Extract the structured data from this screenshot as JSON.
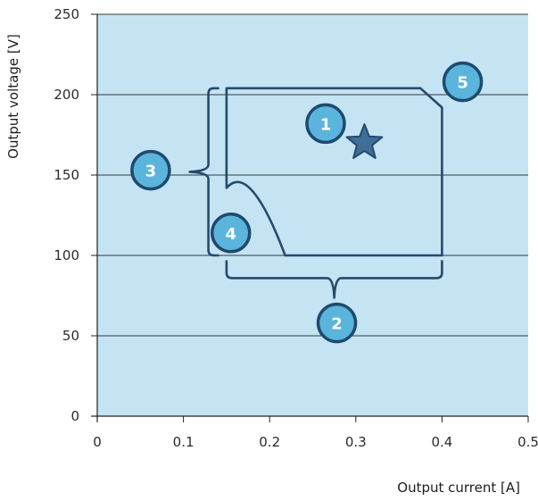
{
  "chart_data": {
    "type": "area",
    "title": "",
    "xlabel": "Output current [A]",
    "ylabel": "Output voltage [V]",
    "xlim": [
      0,
      0.5
    ],
    "ylim": [
      0,
      250
    ],
    "x_ticks": [
      0,
      0.1,
      0.2,
      0.3,
      0.4,
      0.5
    ],
    "x_tick_labels": [
      "0",
      "0.1",
      "0.2",
      "0.3",
      "0.4",
      "0.5"
    ],
    "y_ticks": [
      0,
      50,
      100,
      150,
      200,
      250
    ],
    "y_tick_labels": [
      "0",
      "50",
      "100",
      "150",
      "200",
      "250"
    ],
    "grid": "horizontal",
    "series": [
      {
        "kind": "operating-area-outline",
        "points": [
          [
            0.15,
            204
          ],
          [
            0.375,
            204
          ],
          [
            0.4,
            192
          ],
          [
            0.4,
            100
          ],
          [
            0.218,
            100
          ],
          [
            0.15,
            142
          ]
        ]
      }
    ],
    "markers": [
      {
        "symbol": "star",
        "x": 0.31,
        "y": 170
      }
    ],
    "callouts": [
      {
        "label": "1",
        "x": 0.265,
        "y": 182
      },
      {
        "label": "2",
        "x": 0.278,
        "y": 58
      },
      {
        "label": "3",
        "x": 0.062,
        "y": 153
      },
      {
        "label": "4",
        "x": 0.155,
        "y": 114
      },
      {
        "label": "5",
        "x": 0.424,
        "y": 208
      }
    ],
    "braces": [
      {
        "orientation": "vertical",
        "from": 100,
        "to": 204,
        "at_x": 0.13,
        "tip": "left"
      },
      {
        "orientation": "horizontal",
        "from": 0.15,
        "to": 0.4,
        "at_y": 97,
        "tip": "down"
      }
    ],
    "colors": {
      "plot_background": "#c5e4f3",
      "outline": "#244a6e",
      "star_fill": "#3f6f98",
      "callout_fill": "#5bb4dc",
      "callout_ring": "#1e4a6f",
      "callout_text": "#ffffff",
      "grid": "#000000",
      "axis": "#222222"
    }
  }
}
